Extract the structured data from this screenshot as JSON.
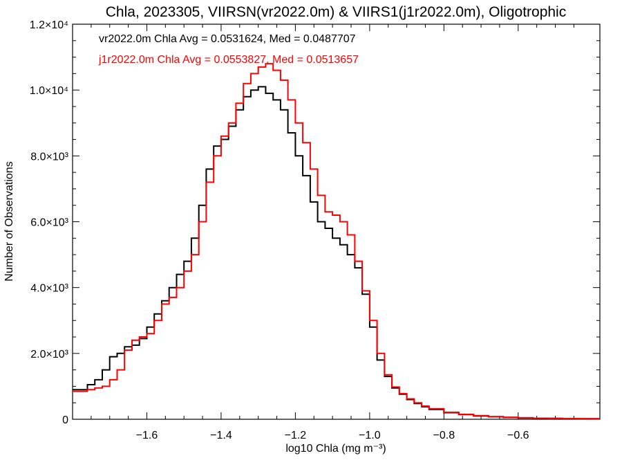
{
  "chart_data": {
    "type": "line",
    "title": "Chla, 2023305, VIIRSN(vr2022.0m) & VIIRS1(j1r2022.0m), Oligotrophic",
    "xlabel": "log10 Chla (mg m⁻³)",
    "ylabel": "Number of Observations",
    "xlim": [
      -1.8,
      -0.38
    ],
    "ylim": [
      0,
      12000
    ],
    "xticks": [
      {
        "value": -1.6,
        "label": "−1.6"
      },
      {
        "value": -1.4,
        "label": "−1.4"
      },
      {
        "value": -1.2,
        "label": "−1.2"
      },
      {
        "value": -1.0,
        "label": "−1.0"
      },
      {
        "value": -0.8,
        "label": "−0.8"
      },
      {
        "value": -0.6,
        "label": "−0.6"
      }
    ],
    "yticks": [
      {
        "value": 0,
        "label": "0"
      },
      {
        "value": 2000,
        "label": "2.0×10³"
      },
      {
        "value": 4000,
        "label": "4.0×10³"
      },
      {
        "value": 6000,
        "label": "6.0×10³"
      },
      {
        "value": 8000,
        "label": "8.0×10³"
      },
      {
        "value": 10000,
        "label": "1.0×10⁴"
      },
      {
        "value": 12000,
        "label": "1.2×10⁴"
      }
    ],
    "grid": false,
    "annotations": [
      {
        "text": "vr2022.0m Chla Avg = 0.0531624, Med = 0.0487707",
        "color": "#000000"
      },
      {
        "text": "j1r2022.0m Chla Avg = 0.0553827, Med = 0.0513657",
        "color": "#ff0000"
      }
    ],
    "series": [
      {
        "color": "#000000",
        "x": [
          -1.8,
          -1.76,
          -1.74,
          -1.72,
          -1.7,
          -1.68,
          -1.66,
          -1.64,
          -1.62,
          -1.6,
          -1.58,
          -1.56,
          -1.54,
          -1.52,
          -1.5,
          -1.48,
          -1.46,
          -1.44,
          -1.42,
          -1.4,
          -1.38,
          -1.36,
          -1.34,
          -1.32,
          -1.3,
          -1.28,
          -1.26,
          -1.24,
          -1.22,
          -1.2,
          -1.18,
          -1.16,
          -1.14,
          -1.12,
          -1.1,
          -1.08,
          -1.06,
          -1.04,
          -1.02,
          -1.0,
          -0.98,
          -0.96,
          -0.94,
          -0.92,
          -0.9,
          -0.88,
          -0.86,
          -0.84,
          -0.8,
          -0.76,
          -0.72,
          -0.68,
          -0.64,
          -0.6,
          -0.56,
          -0.52,
          -0.48,
          -0.44,
          -0.4,
          -0.38
        ],
        "y": [
          900,
          1050,
          1200,
          1500,
          1900,
          2000,
          2200,
          2250,
          2450,
          2800,
          3200,
          3600,
          4000,
          4400,
          4800,
          5500,
          6500,
          7600,
          8300,
          8500,
          8900,
          9400,
          9800,
          10000,
          10100,
          9900,
          9700,
          9400,
          8700,
          8000,
          7400,
          6600,
          6000,
          5800,
          5500,
          5300,
          5000,
          4600,
          3800,
          2800,
          1800,
          1300,
          950,
          760,
          600,
          480,
          380,
          300,
          200,
          140,
          100,
          75,
          55,
          40,
          30,
          25,
          20,
          15,
          15,
          15
        ]
      },
      {
        "color": "#ff0000",
        "x": [
          -1.8,
          -1.76,
          -1.74,
          -1.72,
          -1.7,
          -1.68,
          -1.66,
          -1.64,
          -1.62,
          -1.6,
          -1.58,
          -1.56,
          -1.54,
          -1.52,
          -1.5,
          -1.48,
          -1.46,
          -1.44,
          -1.42,
          -1.4,
          -1.38,
          -1.36,
          -1.34,
          -1.32,
          -1.3,
          -1.28,
          -1.26,
          -1.24,
          -1.22,
          -1.2,
          -1.18,
          -1.16,
          -1.14,
          -1.12,
          -1.1,
          -1.08,
          -1.06,
          -1.04,
          -1.02,
          -1.0,
          -0.98,
          -0.96,
          -0.94,
          -0.92,
          -0.9,
          -0.88,
          -0.86,
          -0.84,
          -0.8,
          -0.76,
          -0.72,
          -0.68,
          -0.64,
          -0.6,
          -0.56,
          -0.52,
          -0.48,
          -0.44,
          -0.4,
          -0.38
        ],
        "y": [
          850,
          900,
          950,
          1000,
          1200,
          1500,
          2100,
          2400,
          2500,
          2600,
          3000,
          3500,
          3700,
          4000,
          4500,
          5000,
          6000,
          7200,
          8000,
          8600,
          9000,
          9600,
          10200,
          10500,
          10700,
          10800,
          10600,
          10300,
          9700,
          9000,
          8400,
          7600,
          6800,
          6300,
          6200,
          6000,
          5600,
          4800,
          3900,
          3000,
          2000,
          1350,
          980,
          780,
          620,
          500,
          400,
          320,
          210,
          150,
          110,
          80,
          60,
          45,
          32,
          27,
          22,
          18,
          15,
          15
        ]
      }
    ]
  }
}
